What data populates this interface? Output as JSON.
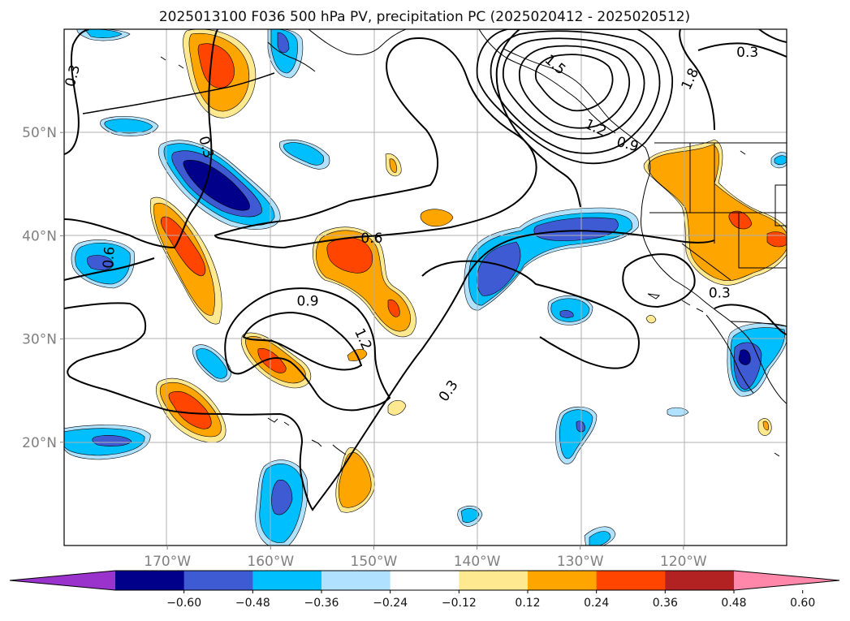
{
  "title": "2025013100 F036 500 hPa PV, precipitation PC (2025020412 - 2025020512)",
  "map": {
    "lon_range": [
      -180,
      -110
    ],
    "lat_range": [
      10,
      60
    ],
    "lon_ticks": [
      {
        "value": -170,
        "label": "170°W"
      },
      {
        "value": -160,
        "label": "160°W"
      },
      {
        "value": -150,
        "label": "150°W"
      },
      {
        "value": -140,
        "label": "140°W"
      },
      {
        "value": -130,
        "label": "130°W"
      },
      {
        "value": -120,
        "label": "120°W"
      }
    ],
    "lat_ticks": [
      {
        "value": 20,
        "label": "20°N"
      },
      {
        "value": 30,
        "label": "30°N"
      },
      {
        "value": 40,
        "label": "40°N"
      },
      {
        "value": 50,
        "label": "50°N"
      }
    ],
    "gridlines": true
  },
  "pv_contour_labels": [
    {
      "text": "0.3",
      "lon": -180,
      "lat": 55.5,
      "rot": -75
    },
    {
      "text": "0.3",
      "lon": -166.2,
      "lat": 48.6,
      "rot": 75
    },
    {
      "text": "0.3",
      "lon": -113.8,
      "lat": 57.8,
      "rot": 0
    },
    {
      "text": "1.8",
      "lon": -119.4,
      "lat": 55.2,
      "rot": -65
    },
    {
      "text": "1.5",
      "lon": -132.4,
      "lat": 56.6,
      "rot": 40
    },
    {
      "text": "1.2",
      "lon": -128.5,
      "lat": 50.5,
      "rot": 25
    },
    {
      "text": "0.9",
      "lon": -125.4,
      "lat": 48.9,
      "rot": 15
    },
    {
      "text": "0.6",
      "lon": -150.2,
      "lat": 39.8,
      "rot": 0
    },
    {
      "text": "0.6",
      "lon": -175.7,
      "lat": 37.9,
      "rot": -85
    },
    {
      "text": "0.9",
      "lon": -156.4,
      "lat": 33.7,
      "rot": 0
    },
    {
      "text": "1.2",
      "lon": -151.0,
      "lat": 30.0,
      "rot": 65
    },
    {
      "text": "0.3",
      "lon": -142.8,
      "lat": 25.0,
      "rot": -55
    },
    {
      "text": "0.3",
      "lon": -116.5,
      "lat": 34.5,
      "rot": 0
    }
  ],
  "precip_pc": {
    "levels": [
      -0.6,
      -0.48,
      -0.36,
      -0.24,
      -0.12,
      0.12,
      0.24,
      0.36,
      0.48,
      0.6
    ],
    "colors": [
      "#9933cc",
      "#00008b",
      "#3f5bd4",
      "#00bfff",
      "#b0e2ff",
      "#ffffff",
      "#ffe990",
      "#ffa500",
      "#ff4500",
      "#b22222",
      "#ff88aa"
    ],
    "tick_labels": [
      "−0.60",
      "−0.48",
      "−0.36",
      "−0.24",
      "−0.12",
      "0.12",
      "0.24",
      "0.36",
      "0.48",
      "0.60"
    ]
  }
}
